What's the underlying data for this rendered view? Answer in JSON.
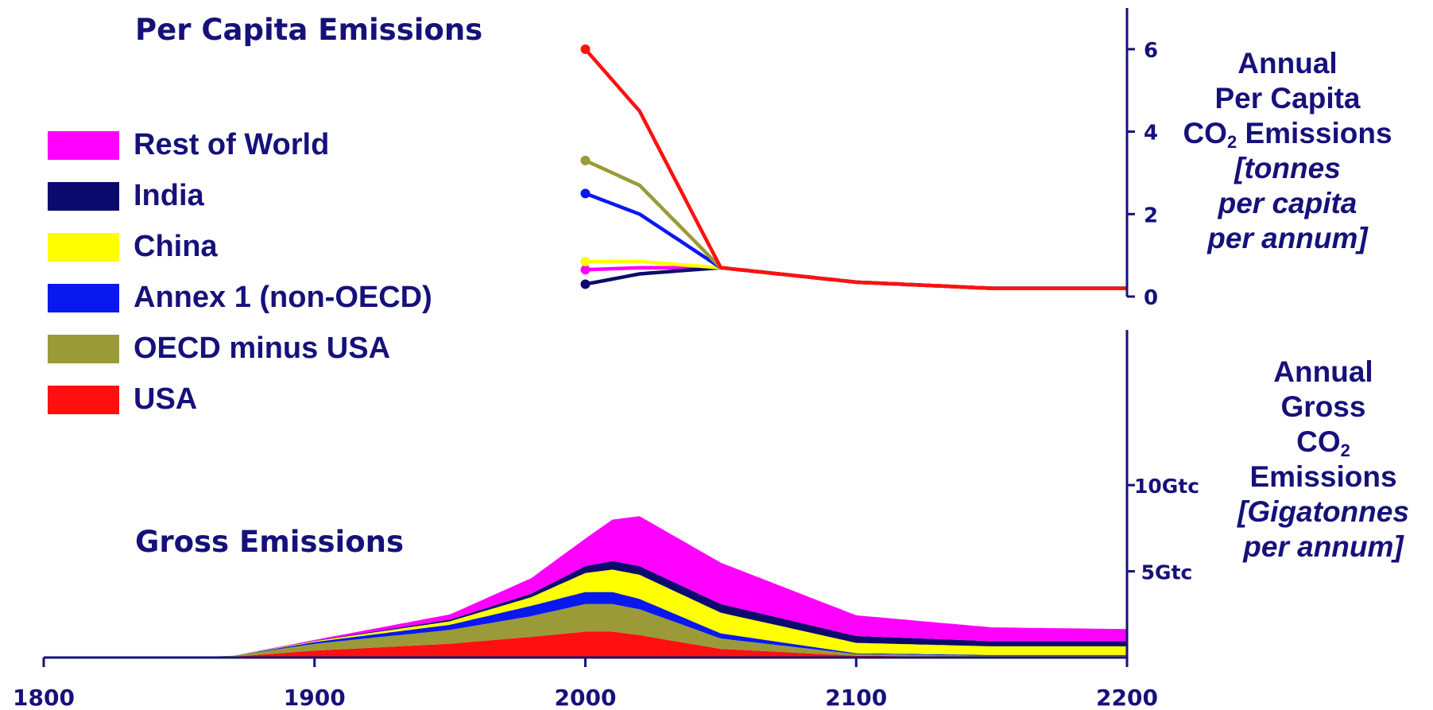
{
  "titles": {
    "per_capita_panel": "Per Capita Emissions",
    "gross_panel": "Gross Emissions"
  },
  "legend": [
    {
      "label": "Rest of World",
      "color": "#ff00ff"
    },
    {
      "label": "India",
      "color": "#0d0a6e"
    },
    {
      "label": "China",
      "color": "#ffff00"
    },
    {
      "label": "Annex 1 (non-OECD)",
      "color": "#0a18f0"
    },
    {
      "label": "OECD minus USA",
      "color": "#9a9a38"
    },
    {
      "label": "USA",
      "color": "#ff1010"
    }
  ],
  "axis_titles": {
    "per_capita": {
      "line1": "Annual",
      "line2": "Per Capita",
      "line3_main": "CO",
      "line3_sub": "2",
      "line3_rest": " Emissions",
      "line4": "[tonnes",
      "line5": "per capita",
      "line6": "per annum]"
    },
    "gross": {
      "line1": "Annual",
      "line2": "Gross",
      "line3_main": "CO",
      "line3_sub": "2",
      "line4": "Emissions",
      "line5": "[Gigatonnes",
      "line6": "per annum]"
    }
  },
  "chart_data": [
    {
      "type": "line",
      "title": "Per Capita Emissions",
      "ylabel": "Annual Per Capita CO2 Emissions [tonnes per capita per annum]",
      "x_range": [
        1800,
        2200
      ],
      "ylim": [
        0,
        7
      ],
      "y_ticks": [
        0,
        2,
        4,
        6
      ],
      "series": [
        {
          "name": "Rest of World",
          "color": "#ff00ff",
          "x": [
            2000,
            2020,
            2050,
            2100,
            2150,
            2200
          ],
          "values": [
            0.65,
            0.7,
            0.7,
            0.35,
            0.2,
            0.2
          ]
        },
        {
          "name": "India",
          "color": "#0d0a6e",
          "x": [
            2000,
            2020,
            2050,
            2100,
            2150,
            2200
          ],
          "values": [
            0.3,
            0.55,
            0.7,
            0.35,
            0.2,
            0.2
          ]
        },
        {
          "name": "China",
          "color": "#ffff00",
          "x": [
            2000,
            2020,
            2050,
            2100,
            2150,
            2200
          ],
          "values": [
            0.85,
            0.85,
            0.7,
            0.35,
            0.2,
            0.2
          ]
        },
        {
          "name": "Annex 1 (non-OECD)",
          "color": "#0a18f0",
          "x": [
            2000,
            2020,
            2050,
            2100,
            2150,
            2200
          ],
          "values": [
            2.5,
            2.0,
            0.7,
            0.35,
            0.2,
            0.2
          ]
        },
        {
          "name": "OECD minus USA",
          "color": "#9a9a38",
          "x": [
            2000,
            2020,
            2050,
            2100,
            2150,
            2200
          ],
          "values": [
            3.3,
            2.7,
            0.7,
            0.35,
            0.2,
            0.2
          ]
        },
        {
          "name": "USA",
          "color": "#ff1010",
          "x": [
            2000,
            2020,
            2050,
            2100,
            2150,
            2200
          ],
          "values": [
            6.0,
            4.5,
            0.7,
            0.35,
            0.2,
            0.2
          ]
        }
      ]
    },
    {
      "type": "area",
      "title": "Gross Emissions",
      "ylabel": "Annual Gross CO2 Emissions [Gigatonnes per annum]",
      "x": [
        1800,
        1850,
        1870,
        1900,
        1950,
        1980,
        2000,
        2010,
        2020,
        2050,
        2100,
        2150,
        2200
      ],
      "x_ticks": [
        1800,
        1900,
        2000,
        2100,
        2200
      ],
      "y_ticks": [
        {
          "value": 5,
          "label": "5Gtc"
        },
        {
          "value": 10,
          "label": "10Gtc"
        }
      ],
      "ylim": [
        0,
        19
      ],
      "series": [
        {
          "name": "USA",
          "color": "#ff1010",
          "values": [
            0,
            0,
            0.05,
            0.4,
            0.8,
            1.2,
            1.5,
            1.5,
            1.3,
            0.5,
            0.1,
            0.05,
            0.05
          ]
        },
        {
          "name": "OECD minus USA",
          "color": "#9a9a38",
          "values": [
            0,
            0,
            0.05,
            0.4,
            0.8,
            1.2,
            1.6,
            1.6,
            1.5,
            0.6,
            0.1,
            0.05,
            0.05
          ]
        },
        {
          "name": "Annex 1 (non-OECD)",
          "color": "#0a18f0",
          "values": [
            0,
            0,
            0,
            0.1,
            0.3,
            0.6,
            0.7,
            0.7,
            0.6,
            0.3,
            0.05,
            0.05,
            0.05
          ]
        },
        {
          "name": "China",
          "color": "#ffff00",
          "values": [
            0,
            0,
            0,
            0.05,
            0.2,
            0.5,
            1.1,
            1.3,
            1.4,
            1.2,
            0.6,
            0.5,
            0.5
          ]
        },
        {
          "name": "India",
          "color": "#0d0a6e",
          "values": [
            0,
            0,
            0,
            0.02,
            0.1,
            0.2,
            0.4,
            0.5,
            0.5,
            0.5,
            0.4,
            0.3,
            0.3
          ]
        },
        {
          "name": "Rest of World",
          "color": "#ff00ff",
          "values": [
            0,
            0,
            0,
            0.05,
            0.3,
            0.9,
            1.6,
            2.4,
            2.9,
            2.4,
            1.2,
            0.8,
            0.7
          ]
        }
      ]
    }
  ]
}
